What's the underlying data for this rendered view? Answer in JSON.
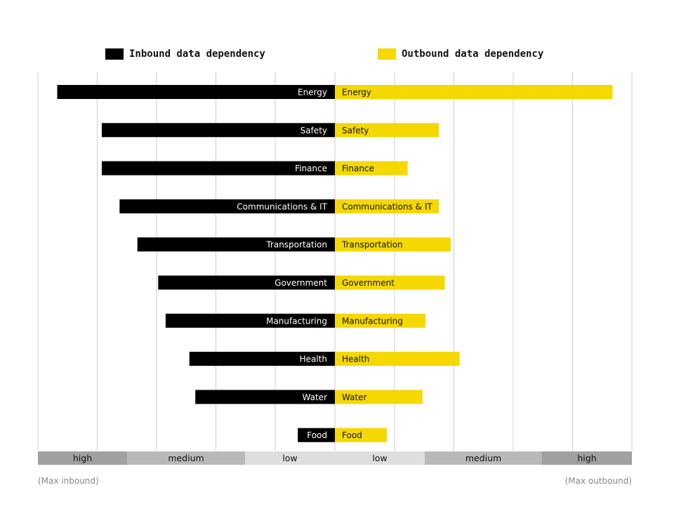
{
  "legend": {
    "inbound_label": "Inbound data dependency",
    "outbound_label": "Outbound data dependency"
  },
  "colors": {
    "inbound": "#000000",
    "outbound": "#f5d800",
    "inbound_text": "#ffffff",
    "outbound_text": "#111111",
    "grid": "#cccccc",
    "band_high": "#a0a0a0",
    "band_medium": "#b9b9b9",
    "band_low": "#dedede"
  },
  "scale_bands": {
    "left": [
      "high",
      "medium",
      "low"
    ],
    "right": [
      "low",
      "medium",
      "high"
    ]
  },
  "footer": {
    "left": "(Max inbound)",
    "right": "(Max outbound)"
  },
  "chart_data": {
    "type": "bar",
    "orientation": "horizontal-diverging",
    "categories": [
      "Energy",
      "Safety",
      "Finance",
      "Communications & IT",
      "Transportation",
      "Government",
      "Manufacturing",
      "Health",
      "Water",
      "Food"
    ],
    "series": [
      {
        "name": "Inbound data dependency",
        "direction": "left",
        "values": [
          93.5,
          78.5,
          78.5,
          72.5,
          66.5,
          59.5,
          57,
          49,
          47,
          12.5
        ]
      },
      {
        "name": "Outbound data dependency",
        "direction": "right",
        "values": [
          93.5,
          35,
          24.5,
          35,
          39,
          37,
          30.5,
          42,
          29.5,
          17.5
        ]
      }
    ],
    "xlim": [
      0,
      100
    ],
    "grid": true,
    "legend_position": "top"
  }
}
